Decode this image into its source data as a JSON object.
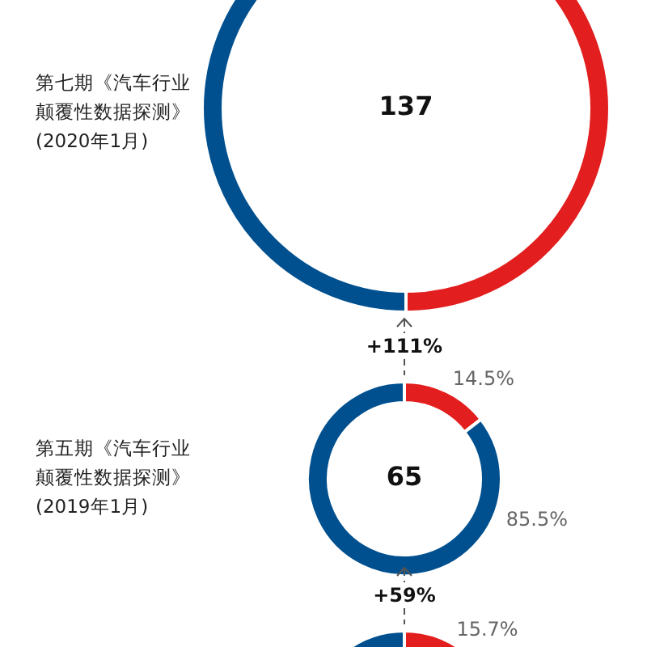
{
  "chart_data": [
    {
      "type": "donut",
      "title": "第七期《汽车行业颠覆性数据探测》(2020年1月)",
      "categories": [
        null,
        null
      ],
      "values": [
        50,
        50
      ],
      "colors": [
        "#e21e1e",
        "#00508f"
      ],
      "annotations": [
        "137"
      ],
      "legend": false
    },
    {
      "type": "donut",
      "title": "第五期《汽车行业颠覆性数据探测》(2019年1月)",
      "categories": [
        null,
        null
      ],
      "values": [
        14.5,
        85.5
      ],
      "colors": [
        "#e21e1e",
        "#00508f"
      ],
      "value_labels": [
        "14.5%",
        "85.5%"
      ],
      "annotations": [
        "+111%",
        "65"
      ],
      "legend": false
    },
    {
      "type": "donut",
      "categories": [
        null,
        null
      ],
      "values": [
        15.7,
        84.3
      ],
      "colors": [
        "#e21e1e",
        "#00508f"
      ],
      "value_labels": [
        "15.7%",
        null
      ],
      "annotations": [
        "+59%"
      ],
      "legend": false
    }
  ]
}
